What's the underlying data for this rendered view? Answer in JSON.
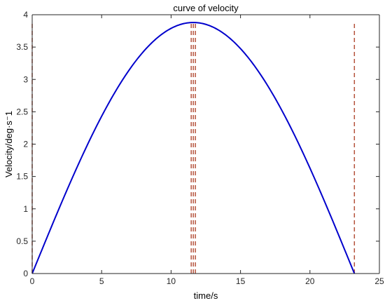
{
  "chart_data": {
    "type": "line",
    "title": "curve of velocity",
    "xlabel": "time/s",
    "ylabel": "Velocity/deg·s⁻1",
    "xlim": [
      0,
      25
    ],
    "ylim": [
      0,
      4
    ],
    "x_ticks": [
      0,
      5,
      10,
      15,
      20,
      25
    ],
    "y_ticks": [
      0,
      0.5,
      1,
      1.5,
      2,
      2.5,
      3,
      3.5,
      4
    ],
    "x_tick_labels": [
      "0",
      "5",
      "10",
      "15",
      "20",
      "25"
    ],
    "y_tick_labels": [
      "0",
      "0.5",
      "1",
      "1.5",
      "2",
      "2.5",
      "3",
      "3.5",
      "4"
    ],
    "grid": false,
    "series": [
      {
        "style": "solid",
        "color": "#0000cc",
        "curve": {
          "form": "half-sine",
          "x_start": 0,
          "x_end": 23.2,
          "peak": 3.88
        }
      }
    ],
    "vertical_markers": [
      {
        "x": 0,
        "y_top": 3.88,
        "color": "#b5533c",
        "style": "dashed"
      },
      {
        "x": 11.45,
        "y_top": 3.88,
        "color": "#b5533c",
        "style": "dashed"
      },
      {
        "x": 11.6,
        "y_top": 3.88,
        "color": "#b5533c",
        "style": "dashed"
      },
      {
        "x": 11.75,
        "y_top": 3.88,
        "color": "#b5533c",
        "style": "dashed"
      },
      {
        "x": 23.2,
        "y_top": 3.88,
        "color": "#b5533c",
        "style": "dashed"
      }
    ],
    "colors": {
      "axis": "#262626",
      "curve": "#0000cc",
      "marker": "#b5533c"
    }
  }
}
